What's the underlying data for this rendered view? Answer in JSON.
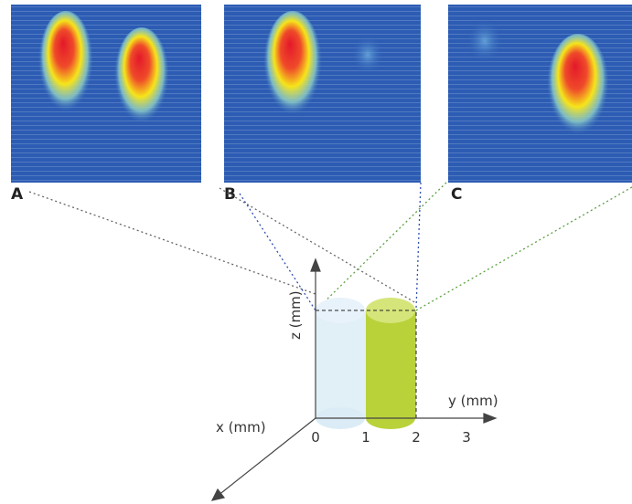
{
  "panels": {
    "labels": [
      "A",
      "B",
      "C"
    ]
  },
  "axes": {
    "z_label": "z (mm)",
    "y_label": "y (mm)",
    "x_label": "x (mm)",
    "y_ticks": [
      0,
      1,
      2,
      3
    ]
  }
}
